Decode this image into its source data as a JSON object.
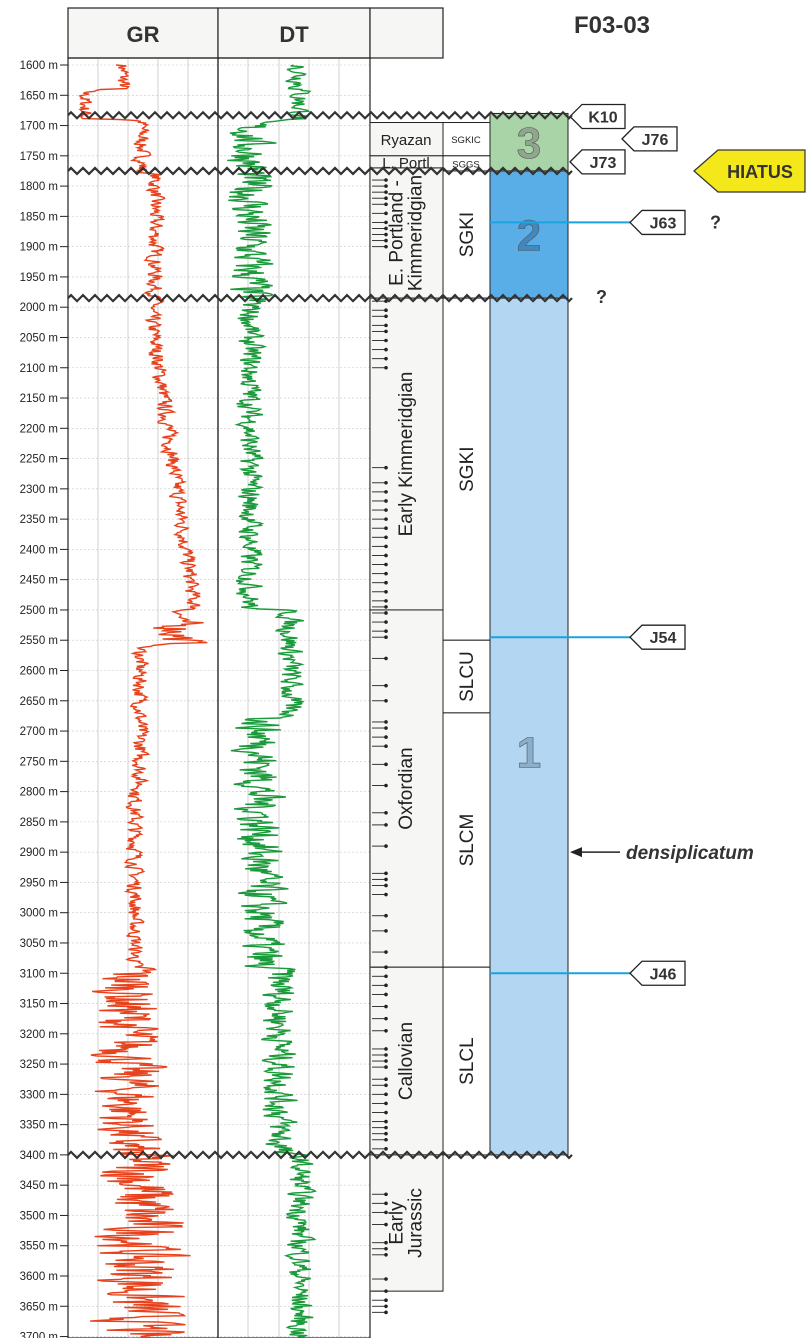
{
  "well_name": "F03-03",
  "log_columns": [
    {
      "key": "gr",
      "label": "GR",
      "color": "#e8421c"
    },
    {
      "key": "dt",
      "label": "DT",
      "color": "#1a9a3a"
    }
  ],
  "depth_axis": {
    "unit": "m",
    "ticks": [
      "1600 m",
      "1650 m",
      "1700 m",
      "1750 m",
      "1800 m",
      "1850 m",
      "1900 m",
      "1950 m",
      "2000 m",
      "2050 m",
      "2100 m",
      "2150 m",
      "2200 m",
      "2250 m",
      "2300 m",
      "2350 m",
      "2400 m",
      "2450 m",
      "2500 m",
      "2550 m",
      "2600 m",
      "2650 m",
      "2700 m",
      "2750 m",
      "2800 m",
      "2850 m",
      "2900 m",
      "2950 m",
      "3000 m",
      "3050 m",
      "3100 m",
      "3150 m",
      "3200 m",
      "3250 m",
      "3300 m",
      "3350 m",
      "3400 m",
      "3450 m",
      "3500 m",
      "3550 m",
      "3600 m",
      "3650 m",
      "3700 m"
    ]
  },
  "stages": [
    {
      "label": "Ryazan",
      "top": 1695,
      "base": 1750
    },
    {
      "label": "L. Portl",
      "top": 1750,
      "base": 1770
    },
    {
      "label": "E. Portland -\nKimmeridgian",
      "top": 1770,
      "base": 1985
    },
    {
      "label": "Early Kimmeridgian",
      "top": 1985,
      "base": 2500
    },
    {
      "label": "Oxfordian",
      "top": 2500,
      "base": 3090
    },
    {
      "label": "Callovian",
      "top": 3090,
      "base": 3400
    },
    {
      "label": "Early\nJurassic",
      "top": 3400,
      "base": 3625
    }
  ],
  "formations": [
    {
      "label": "SGKIC",
      "top": 1695,
      "base": 1750,
      "small": true
    },
    {
      "label": "SGGS",
      "top": 1750,
      "base": 1775,
      "small": true
    },
    {
      "label": "SGKI",
      "top": 1775,
      "base": 1985
    },
    {
      "label": "SGKI",
      "top": 1985,
      "base": 2550
    },
    {
      "label": "SLCU",
      "top": 2550,
      "base": 2670
    },
    {
      "label": "SLCM",
      "top": 2670,
      "base": 3090
    },
    {
      "label": "SLCL",
      "top": 3090,
      "base": 3400
    }
  ],
  "sequences": [
    {
      "label": "3",
      "top": 1680,
      "base": 1775,
      "color": "#a9d4a8"
    },
    {
      "label": "2",
      "top": 1775,
      "base": 1985,
      "color": "#5aaee8"
    },
    {
      "label": "1",
      "top": 1985,
      "base": 3400,
      "color": "#b3d7f3"
    }
  ],
  "surfaces": [
    {
      "label": "K10",
      "depth": 1685,
      "line": false,
      "query": ""
    },
    {
      "label": "J76",
      "depth": 1720,
      "line": false,
      "query": ""
    },
    {
      "label": "J73",
      "depth": 1757,
      "line": false,
      "query": ""
    },
    {
      "label": "J63",
      "depth": 1860,
      "line": true,
      "query": "?"
    },
    {
      "label": "J54",
      "depth": 2545,
      "line": true,
      "query": ""
    },
    {
      "label": "J46",
      "depth": 3100,
      "line": true,
      "query": ""
    }
  ],
  "unconformity_depths": [
    1683,
    1775,
    1985,
    3400
  ],
  "hiatus_label": "HIATUS",
  "question_marks": [
    "?"
  ],
  "annotation": {
    "text": "densiplicatum",
    "depth": 2900
  },
  "sample_depths": [
    1790,
    1800,
    1810,
    1820,
    1830,
    1845,
    1860,
    1870,
    1880,
    1890,
    1900,
    1990,
    2005,
    2015,
    2030,
    2040,
    2055,
    2070,
    2085,
    2100,
    2265,
    2290,
    2305,
    2320,
    2335,
    2350,
    2365,
    2380,
    2395,
    2410,
    2425,
    2440,
    2455,
    2470,
    2485,
    2495,
    2505,
    2520,
    2535,
    2545,
    2580,
    2625,
    2650,
    2685,
    2695,
    2710,
    2725,
    2755,
    2790,
    2835,
    2855,
    2890,
    2935,
    2945,
    2955,
    2970,
    3005,
    3030,
    3065,
    3090,
    3105,
    3120,
    3135,
    3155,
    3175,
    3195,
    3225,
    3235,
    3245,
    3255,
    3275,
    3285,
    3300,
    3315,
    3330,
    3345,
    3355,
    3365,
    3375,
    3390,
    3465,
    3480,
    3495,
    3515,
    3545,
    3555,
    3565,
    3605,
    3625,
    3640,
    3650,
    3660
  ]
}
